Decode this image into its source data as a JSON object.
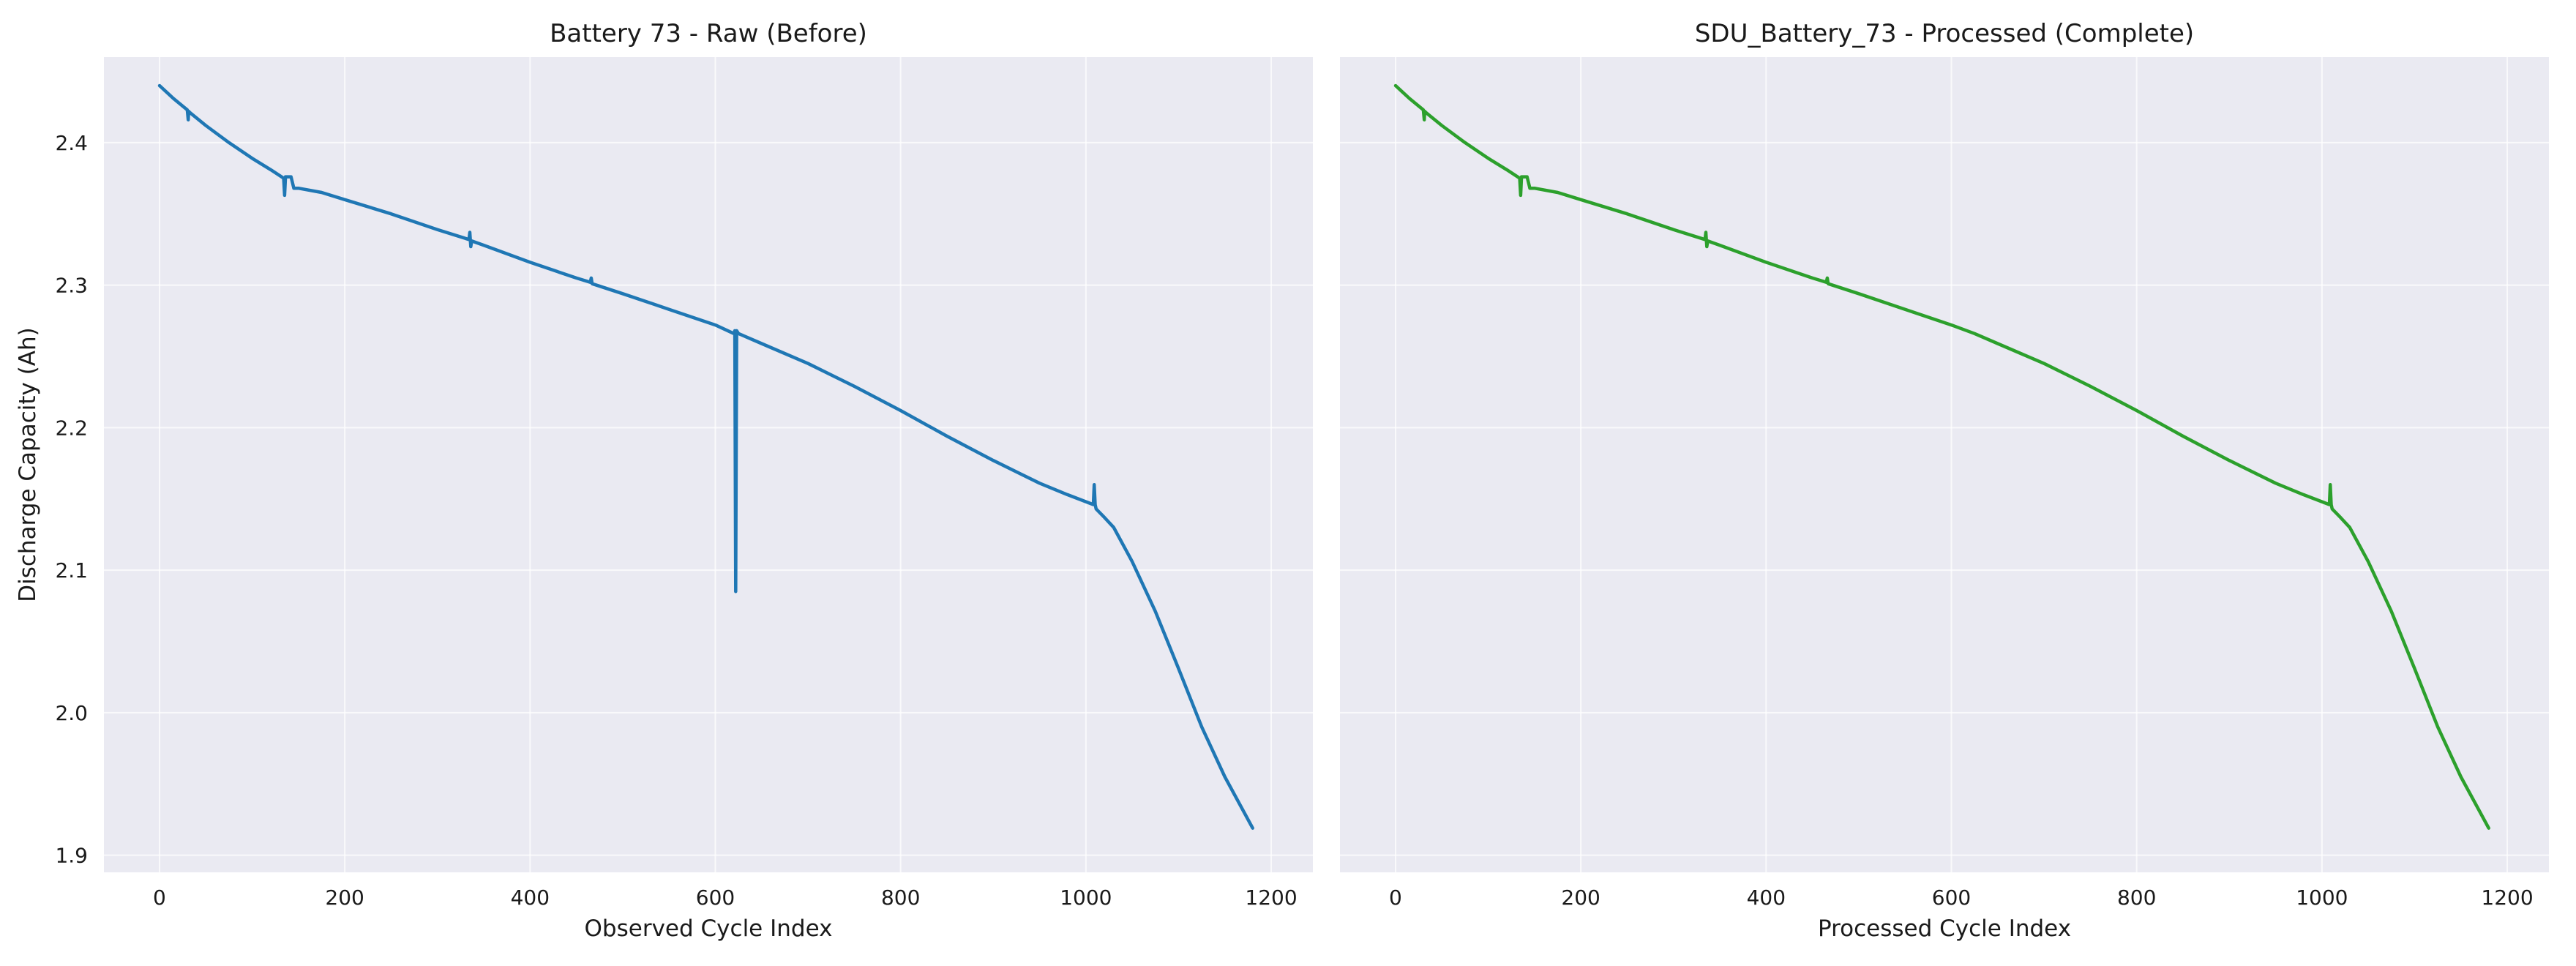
{
  "chart_data": [
    {
      "type": "line",
      "title": "Battery 73 - Raw (Before)",
      "xlabel": "Observed Cycle Index",
      "ylabel": "Discharge Capacity (Ah)",
      "xlim": [
        -60,
        1245
      ],
      "ylim": [
        1.888,
        2.46
      ],
      "xticks": [
        0,
        200,
        400,
        600,
        800,
        1000,
        1200
      ],
      "yticks": [
        1.9,
        2.0,
        2.1,
        2.2,
        2.3,
        2.4
      ],
      "grid": true,
      "color": "#1f77b4",
      "series": [
        {
          "x": [
            0,
            15,
            30,
            31,
            31.5,
            33,
            50,
            75,
            100,
            120,
            134,
            135,
            136,
            137,
            140,
            142,
            145,
            147,
            150,
            175,
            200,
            250,
            300,
            334,
            335,
            336,
            337,
            350,
            400,
            450,
            465,
            466,
            467,
            500,
            550,
            600,
            620,
            621,
            622,
            623,
            624,
            625,
            650,
            700,
            750,
            800,
            850,
            900,
            950,
            980,
            1000,
            1008,
            1009,
            1010,
            1011,
            1020,
            1030,
            1050,
            1075,
            1100,
            1125,
            1150,
            1180
          ],
          "y": [
            2.44,
            2.431,
            2.423,
            2.416,
            2.422,
            2.421,
            2.412,
            2.4,
            2.389,
            2.381,
            2.375,
            2.363,
            2.376,
            2.376,
            2.376,
            2.376,
            2.368,
            2.368,
            2.368,
            2.365,
            2.36,
            2.35,
            2.339,
            2.332,
            2.337,
            2.327,
            2.331,
            2.328,
            2.316,
            2.305,
            2.302,
            2.305,
            2.301,
            2.294,
            2.283,
            2.272,
            2.266,
            2.268,
            2.085,
            2.268,
            2.267,
            2.266,
            2.259,
            2.245,
            2.229,
            2.212,
            2.194,
            2.177,
            2.161,
            2.153,
            2.148,
            2.146,
            2.16,
            2.146,
            2.143,
            2.137,
            2.13,
            2.106,
            2.071,
            2.031,
            1.99,
            1.955,
            1.919
          ]
        }
      ]
    },
    {
      "type": "line",
      "title": "SDU_Battery_73 - Processed (Complete)",
      "xlabel": "Processed Cycle Index",
      "ylabel": "",
      "xlim": [
        -60,
        1245
      ],
      "ylim": [
        1.888,
        2.46
      ],
      "xticks": [
        0,
        200,
        400,
        600,
        800,
        1000,
        1200
      ],
      "grid": true,
      "color": "#2ca02c",
      "series": [
        {
          "x": [
            0,
            15,
            30,
            31,
            31.5,
            33,
            50,
            75,
            100,
            120,
            134,
            135,
            136,
            137,
            140,
            142,
            145,
            147,
            150,
            175,
            200,
            250,
            300,
            334,
            335,
            336,
            337,
            350,
            400,
            450,
            465,
            466,
            467,
            500,
            550,
            600,
            625,
            650,
            700,
            750,
            800,
            850,
            900,
            950,
            980,
            1000,
            1008,
            1009,
            1010,
            1011,
            1020,
            1030,
            1050,
            1075,
            1100,
            1125,
            1150,
            1180
          ],
          "y": [
            2.44,
            2.431,
            2.423,
            2.416,
            2.422,
            2.421,
            2.412,
            2.4,
            2.389,
            2.381,
            2.375,
            2.363,
            2.376,
            2.376,
            2.376,
            2.376,
            2.368,
            2.368,
            2.368,
            2.365,
            2.36,
            2.35,
            2.339,
            2.332,
            2.337,
            2.327,
            2.331,
            2.328,
            2.316,
            2.305,
            2.302,
            2.305,
            2.301,
            2.294,
            2.283,
            2.272,
            2.266,
            2.259,
            2.245,
            2.229,
            2.212,
            2.194,
            2.177,
            2.161,
            2.153,
            2.148,
            2.146,
            2.16,
            2.146,
            2.143,
            2.137,
            2.13,
            2.106,
            2.071,
            2.031,
            1.99,
            1.955,
            1.919
          ]
        }
      ]
    }
  ]
}
